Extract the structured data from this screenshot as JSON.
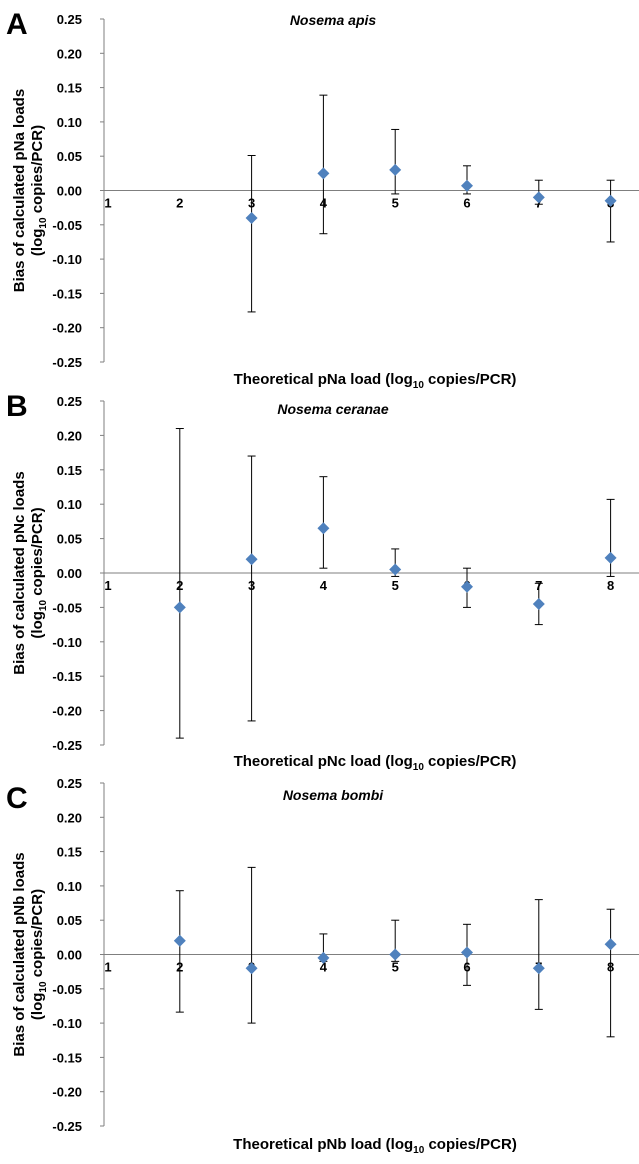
{
  "chart_data": [
    {
      "type": "scatter",
      "panel_label": "A",
      "title": "Nosema apis",
      "xlabel": {
        "pre": "Theoretical pNa load (log",
        "sub": "10",
        "post": " copies/PCR)"
      },
      "ylabel": {
        "line1": "Bias of calculated pNa loads",
        "pre": "(log",
        "sub": "10",
        "post": " copies/PCR)"
      },
      "ylim": [
        -0.25,
        0.25
      ],
      "xlim": [
        1,
        8.5
      ],
      "y_ticks": [
        "0.25",
        "0.20",
        "0.15",
        "0.10",
        "0.05",
        "0.00",
        "-0.05",
        "-0.10",
        "-0.15",
        "-0.20",
        "-0.25"
      ],
      "x_ticks": [
        "1",
        "2",
        "3",
        "4",
        "5",
        "6",
        "7",
        "8"
      ],
      "points": [
        {
          "x": 3,
          "y": -0.04,
          "lo": -0.177,
          "hi": 0.051
        },
        {
          "x": 4,
          "y": 0.025,
          "lo": -0.063,
          "hi": 0.139
        },
        {
          "x": 5,
          "y": 0.03,
          "lo": -0.005,
          "hi": 0.089
        },
        {
          "x": 6,
          "y": 0.007,
          "lo": -0.005,
          "hi": 0.036
        },
        {
          "x": 7,
          "y": -0.01,
          "lo": -0.02,
          "hi": 0.015
        },
        {
          "x": 8,
          "y": -0.015,
          "lo": -0.075,
          "hi": 0.015
        }
      ]
    },
    {
      "type": "scatter",
      "panel_label": "B",
      "title": "Nosema ceranae",
      "xlabel": {
        "pre": "Theoretical pNc load (log",
        "sub": "10",
        "post": " copies/PCR)"
      },
      "ylabel": {
        "line1": "Bias of calculated pNc loads",
        "pre": "(log",
        "sub": "10",
        "post": " copies/PCR)"
      },
      "ylim": [
        -0.25,
        0.25
      ],
      "xlim": [
        1,
        8.5
      ],
      "y_ticks": [
        "0.25",
        "0.20",
        "0.15",
        "0.10",
        "0.05",
        "0.00",
        "-0.05",
        "-0.10",
        "-0.15",
        "-0.20",
        "-0.25"
      ],
      "x_ticks": [
        "1",
        "2",
        "3",
        "4",
        "5",
        "6",
        "7",
        "8"
      ],
      "points": [
        {
          "x": 2,
          "y": -0.05,
          "lo": -0.24,
          "hi": 0.21
        },
        {
          "x": 3,
          "y": 0.02,
          "lo": -0.215,
          "hi": 0.17
        },
        {
          "x": 4,
          "y": 0.065,
          "lo": 0.007,
          "hi": 0.14
        },
        {
          "x": 5,
          "y": 0.005,
          "lo": -0.005,
          "hi": 0.035
        },
        {
          "x": 6,
          "y": -0.02,
          "lo": -0.05,
          "hi": 0.007
        },
        {
          "x": 7,
          "y": -0.045,
          "lo": -0.075,
          "hi": -0.015
        },
        {
          "x": 8,
          "y": 0.022,
          "lo": -0.005,
          "hi": 0.107
        }
      ]
    },
    {
      "type": "scatter",
      "panel_label": "C",
      "title": "Nosema bombi",
      "xlabel": {
        "pre": "Theoretical pNb load (log",
        "sub": "10",
        "post": " copies/PCR)"
      },
      "ylabel": {
        "line1": "Bias of calculated pNb loads",
        "pre": "(log",
        "sub": "10",
        "post": " copies/PCR)"
      },
      "ylim": [
        -0.25,
        0.25
      ],
      "xlim": [
        1,
        8.5
      ],
      "y_ticks": [
        "0.25",
        "0.20",
        "0.15",
        "0.10",
        "0.05",
        "0.00",
        "-0.05",
        "-0.10",
        "-0.15",
        "-0.20",
        "-0.25"
      ],
      "x_ticks": [
        "1",
        "2",
        "3",
        "4",
        "5",
        "6",
        "7",
        "8"
      ],
      "points": [
        {
          "x": 2,
          "y": 0.02,
          "lo": -0.084,
          "hi": 0.093
        },
        {
          "x": 3,
          "y": -0.02,
          "lo": -0.1,
          "hi": 0.127
        },
        {
          "x": 4,
          "y": -0.005,
          "lo": -0.01,
          "hi": 0.03
        },
        {
          "x": 5,
          "y": 0.0,
          "lo": -0.01,
          "hi": 0.05
        },
        {
          "x": 6,
          "y": 0.003,
          "lo": -0.045,
          "hi": 0.044
        },
        {
          "x": 7,
          "y": -0.02,
          "lo": -0.08,
          "hi": 0.08
        },
        {
          "x": 8,
          "y": 0.015,
          "lo": -0.12,
          "hi": 0.066
        }
      ]
    }
  ],
  "colors": {
    "marker": "#4f81bd",
    "axis": "#7f7f7f",
    "errorbar": "#000000"
  }
}
